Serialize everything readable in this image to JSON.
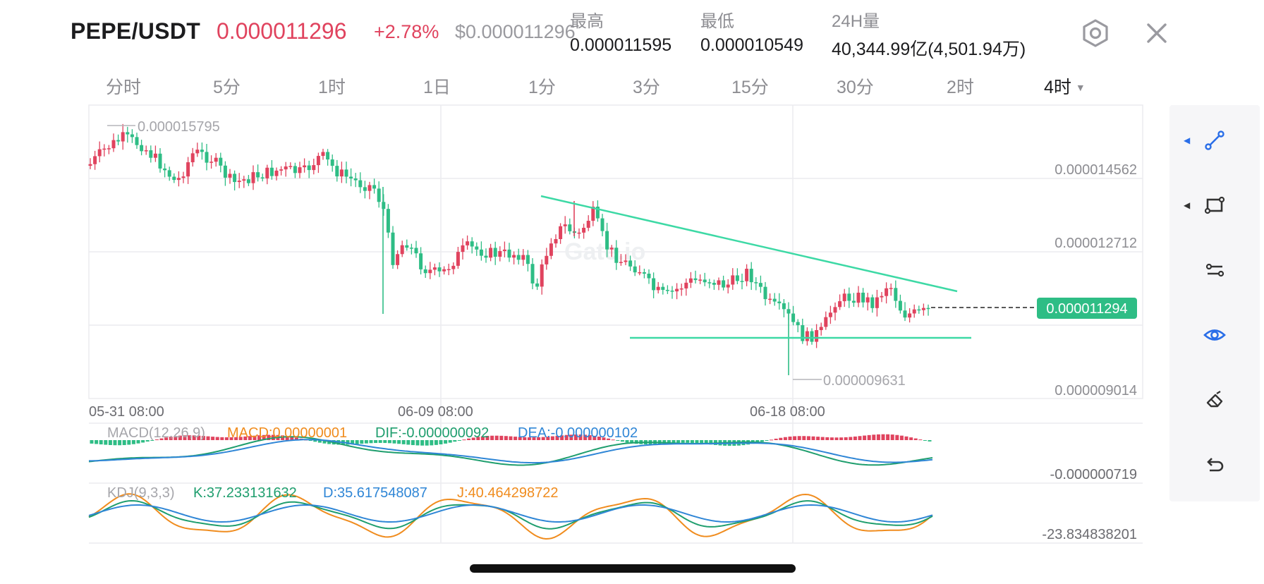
{
  "header": {
    "pair": "PEPE/USDT",
    "price": "0.000011296",
    "change": "+2.78%",
    "usd_price": "$0.000011296",
    "stats": [
      {
        "label": "最高",
        "value": "0.000011595"
      },
      {
        "label": "最低",
        "value": "0.000010549"
      },
      {
        "label": "24H量",
        "value": "40,344.99亿(4,501.94万)"
      }
    ],
    "settings_icon": "hexagon-settings-icon",
    "close_icon": "close-icon"
  },
  "timeframes": {
    "items": [
      "分时",
      "5分",
      "1时",
      "1日",
      "1分",
      "3分",
      "15分",
      "30分",
      "2时",
      "4时"
    ],
    "selected": "4时"
  },
  "chart": {
    "watermark": "Gate.io",
    "price_ticks": [
      "0.000014562",
      "0.000012712",
      "0.000009014"
    ],
    "high_marker": "0.000015795",
    "low_marker": "0.000009631",
    "current_price_tag": "0.000011294",
    "date_labels": [
      "05-31 08:00",
      "06-09 08:00",
      "06-18 08:00"
    ],
    "macd": {
      "title": "MACD(12,26,9)",
      "macd": "MACD:0.00000001",
      "dif": "DIF:-0.000000092",
      "dea": "DEA:-0.000000102",
      "axis_label": "-0.000000719"
    },
    "kdj": {
      "title": "KDJ(9,3,3)",
      "k": "K:37.233131632",
      "d": "D:35.617548087",
      "j": "J:40.464298722",
      "axis_label": "-23.834838201"
    },
    "colors": {
      "up": "#e0435e",
      "down": "#2ebd85",
      "trend": "#3dd9a5",
      "dif": "#1f9e6e",
      "dea": "#2f86d6",
      "j": "#f08c1e",
      "tag": "#2ebd85"
    }
  },
  "tools": [
    {
      "name": "line-draw-icon",
      "has_arrow": true,
      "active": true
    },
    {
      "name": "rectangle-draw-icon",
      "has_arrow": true,
      "active": false
    },
    {
      "name": "parallel-lines-icon",
      "has_arrow": false,
      "active": false
    },
    {
      "name": "eye-icon",
      "has_arrow": false,
      "active": true
    },
    {
      "name": "eraser-icon",
      "has_arrow": false,
      "active": false
    },
    {
      "name": "undo-icon",
      "has_arrow": false,
      "active": false
    }
  ]
}
